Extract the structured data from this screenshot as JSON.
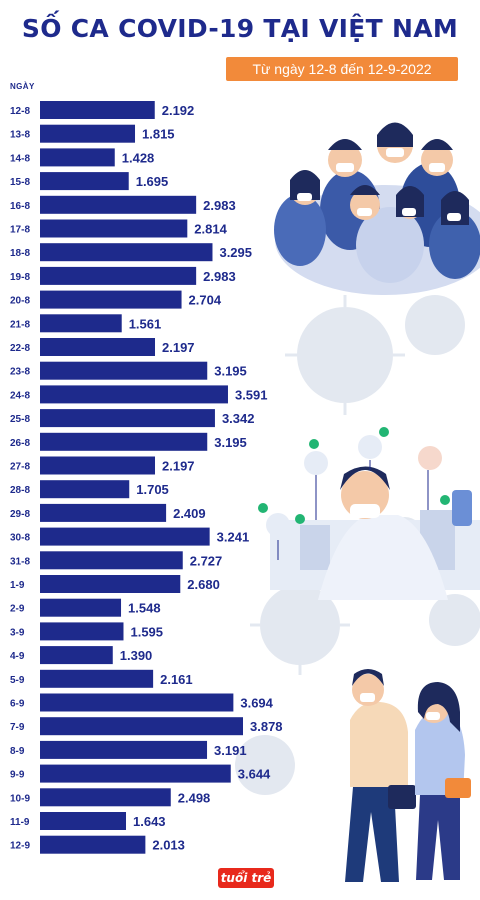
{
  "header": {
    "title": "SỐ CA COVID-19 TẠI VIỆT NAM",
    "date_range": "Từ ngày 12-8 đến 12-9-2022"
  },
  "axis_label": "NGÀY",
  "logo_text": "tuổi trẻ",
  "colors": {
    "bar": "#1e2a8c",
    "accent": "#f28a3a",
    "text": "#1e2a8c"
  },
  "chart_data": {
    "type": "bar",
    "orientation": "horizontal",
    "title": "SỐ CA COVID-19 TẠI VIỆT NAM",
    "subtitle": "Từ ngày 12-8 đến 12-9-2022",
    "ylabel": "NGÀY",
    "xlim": [
      0,
      4000
    ],
    "grid": false,
    "categories": [
      "12-8",
      "13-8",
      "14-8",
      "15-8",
      "16-8",
      "17-8",
      "18-8",
      "19-8",
      "20-8",
      "21-8",
      "22-8",
      "23-8",
      "24-8",
      "25-8",
      "26-8",
      "27-8",
      "28-8",
      "29-8",
      "30-8",
      "31-8",
      "1-9",
      "2-9",
      "3-9",
      "4-9",
      "5-9",
      "6-9",
      "7-9",
      "8-9",
      "9-9",
      "10-9",
      "11-9",
      "12-9"
    ],
    "values": [
      2192,
      1815,
      1428,
      1695,
      2983,
      2814,
      3295,
      2983,
      2704,
      1561,
      2197,
      3195,
      3591,
      3342,
      3195,
      2197,
      1705,
      2409,
      3241,
      2727,
      2680,
      1548,
      1595,
      1390,
      2161,
      3694,
      3878,
      3191,
      3644,
      2498,
      1643,
      2013
    ],
    "value_labels": [
      "2.192",
      "1.815",
      "1.428",
      "1.695",
      "2.983",
      "2.814",
      "3.295",
      "2.983",
      "2.704",
      "1.561",
      "2.197",
      "3.195",
      "3.591",
      "3.342",
      "3.195",
      "2.197",
      "1.705",
      "2.409",
      "3.241",
      "2.727",
      "2.680",
      "1.548",
      "1.595",
      "1.390",
      "2.161",
      "3.694",
      "3.878",
      "3.191",
      "3.644",
      "2.498",
      "1.643",
      "2.013"
    ]
  }
}
